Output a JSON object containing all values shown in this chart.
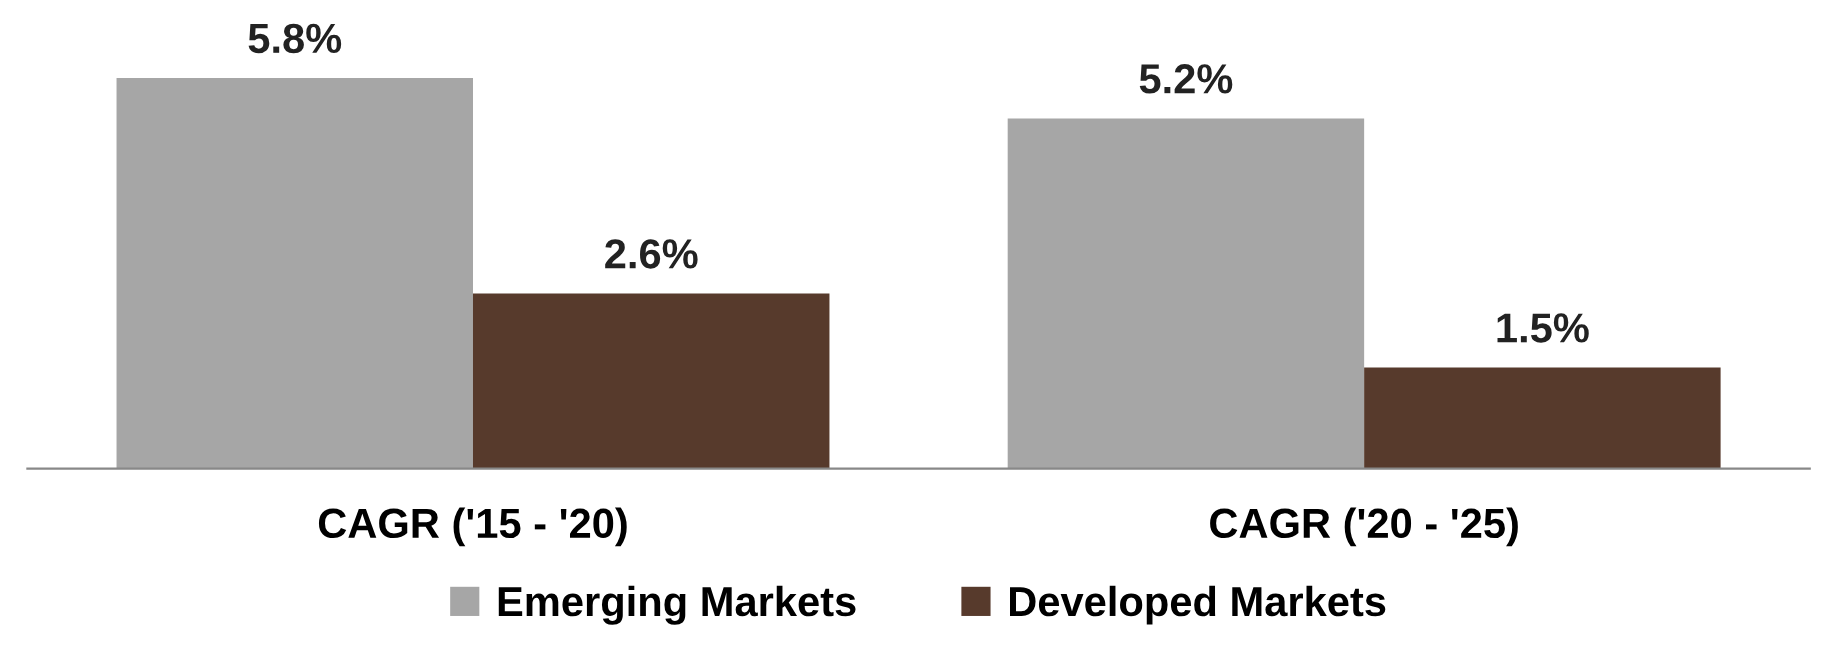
{
  "chart_data": {
    "type": "bar",
    "categories": [
      "CAGR ('15 - '20)",
      "CAGR ('20 - '25)"
    ],
    "series": [
      {
        "name": "Emerging Markets",
        "color": "#a6a6a6",
        "values": [
          5.8,
          5.2
        ],
        "value_labels": [
          "5.8%",
          "5.2%"
        ]
      },
      {
        "name": "Developed Markets",
        "color": "#573a2c",
        "values": [
          2.6,
          1.5
        ],
        "value_labels": [
          "2.6%",
          "1.5%"
        ]
      }
    ],
    "tick_labels": "x",
    "grid": false,
    "legend": "bottom"
  }
}
